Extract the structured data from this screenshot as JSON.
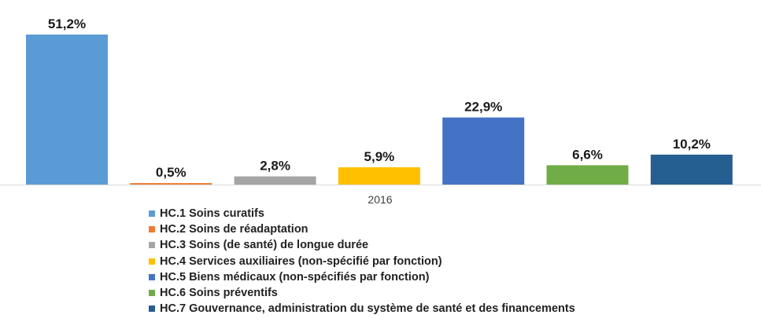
{
  "chart_data": {
    "type": "bar",
    "categories": [
      "2016"
    ],
    "ylim": [
      0,
      51.2
    ],
    "grid": false,
    "legend_position": "bottom",
    "series": [
      {
        "name": "HC.1 Soins curatifs",
        "values": [
          51.2
        ],
        "label": "51,2%",
        "color": "#5B9BD5"
      },
      {
        "name": "HC.2 Soins de réadaptation",
        "values": [
          0.5
        ],
        "label": "0,5%",
        "color": "#ED7D31"
      },
      {
        "name": "HC.3 Soins (de santé) de longue durée",
        "values": [
          2.8
        ],
        "label": "2,8%",
        "color": "#A5A5A5"
      },
      {
        "name": "HC.4 Services auxiliaires (non-spécifié par fonction)",
        "values": [
          5.9
        ],
        "label": "5,9%",
        "color": "#FFC000"
      },
      {
        "name": "HC.5 Biens médicaux (non-spécifiés par fonction)",
        "values": [
          22.9
        ],
        "label": "22,9%",
        "color": "#4472C4"
      },
      {
        "name": "HC.6 Soins préventifs",
        "values": [
          6.6
        ],
        "label": "6,6%",
        "color": "#70AD47"
      },
      {
        "name": "HC.7 Gouvernance, administration du système de santé et des financements",
        "values": [
          10.2
        ],
        "label": "10,2%",
        "color": "#255E91"
      }
    ]
  }
}
